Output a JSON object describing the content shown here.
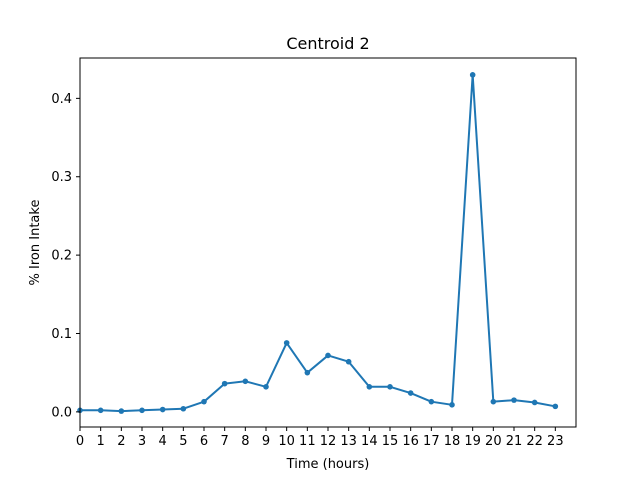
{
  "chart_data": {
    "type": "line",
    "title": "Centroid 2",
    "xlabel": "Time (hours)",
    "ylabel": "% Iron Intake",
    "x": [
      0,
      1,
      2,
      3,
      4,
      5,
      6,
      7,
      8,
      9,
      10,
      11,
      12,
      13,
      14,
      15,
      16,
      17,
      18,
      19,
      20,
      21,
      22,
      23
    ],
    "x_tick_labels": [
      "0",
      "1",
      "2",
      "3",
      "4",
      "5",
      "6",
      "7",
      "8",
      "9",
      "10",
      "11",
      "12",
      "13",
      "14",
      "15",
      "16",
      "17",
      "18",
      "19",
      "20",
      "21",
      "22",
      "23"
    ],
    "y_ticks": [
      0.0,
      0.1,
      0.2,
      0.3,
      0.4
    ],
    "y_tick_labels": [
      "0.0",
      "0.1",
      "0.2",
      "0.3",
      "0.4"
    ],
    "xlim": [
      0,
      24
    ],
    "ylim": [
      -0.0193,
      0.4515
    ],
    "grid": false,
    "series": [
      {
        "name": "Centroid 2",
        "color": "#1f77b4",
        "marker": "circle",
        "values": [
          0.002,
          0.002,
          0.001,
          0.002,
          0.003,
          0.004,
          0.013,
          0.036,
          0.039,
          0.032,
          0.088,
          0.05,
          0.072,
          0.064,
          0.032,
          0.032,
          0.024,
          0.013,
          0.009,
          0.43,
          0.013,
          0.015,
          0.012,
          0.007
        ]
      }
    ]
  }
}
